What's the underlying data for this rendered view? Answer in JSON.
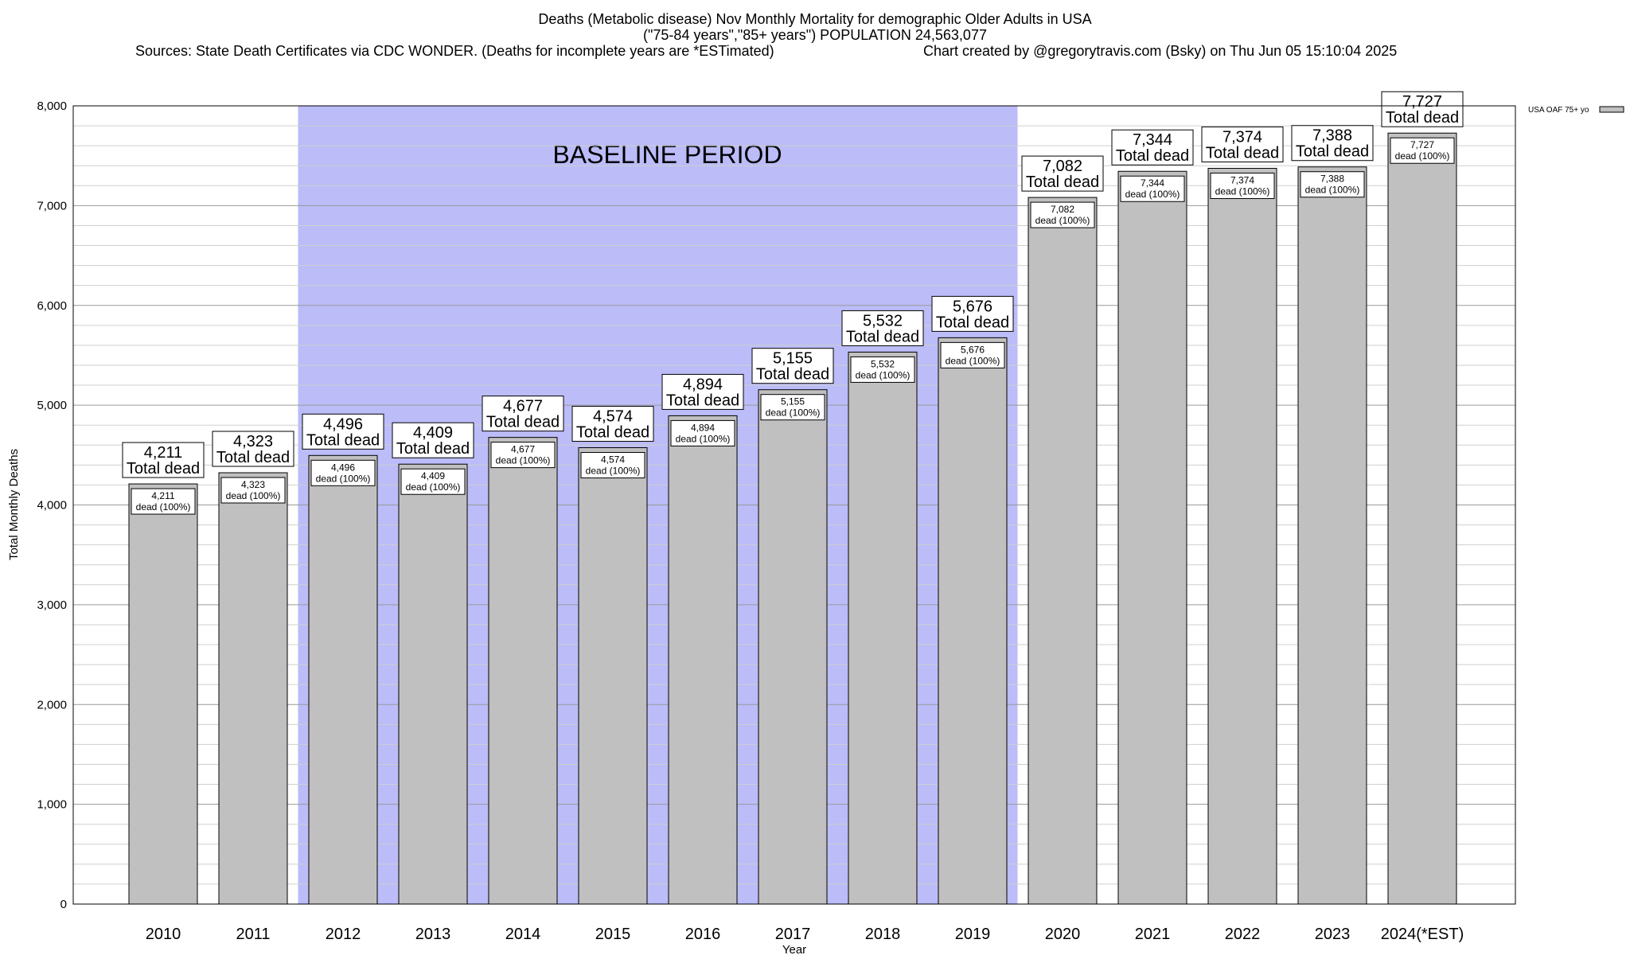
{
  "header": {
    "line1": "Deaths (Metabolic disease) Nov Monthly Mortality for demographic Older Adults in USA",
    "line2": "(\"75-84 years\",\"85+ years\") POPULATION 24,563,077",
    "line3": "Sources: State Death Certificates via CDC WONDER. (Deaths for incomplete years are *ESTimated)",
    "line4": "Chart created by @gregorytravis.com (Bsky) on Thu Jun 05 15:10:04 2025"
  },
  "colors": {
    "bar_fill": "#c0c0c0",
    "baseline_fill": "#bbbcf8",
    "grid": "#aaaaaa"
  },
  "chart_data": {
    "type": "bar",
    "ylabel": "Total Monthly Deaths",
    "xlabel": "Year",
    "ylim": [
      0,
      8000
    ],
    "yticks": [
      0,
      1000,
      2000,
      3000,
      4000,
      5000,
      6000,
      7000,
      8000
    ],
    "ytick_labels": [
      "0",
      "1,000",
      "2,000",
      "3,000",
      "4,000",
      "5,000",
      "6,000",
      "7,000",
      "8,000"
    ],
    "grid": true,
    "legend": {
      "position": "top-right",
      "entry": "USA OAF 75+ yo"
    },
    "baseline_label": "BASELINE PERIOD",
    "baseline_range": [
      "2012",
      "2019"
    ],
    "total_label": "Total dead",
    "inner_label": "dead (100%)",
    "categories": [
      "2010",
      "2011",
      "2012",
      "2013",
      "2014",
      "2015",
      "2016",
      "2017",
      "2018",
      "2019",
      "2020",
      "2021",
      "2022",
      "2023",
      "2024(*EST)"
    ],
    "values": [
      4211,
      4323,
      4496,
      4409,
      4677,
      4574,
      4894,
      5155,
      5532,
      5676,
      7082,
      7344,
      7374,
      7388,
      7727
    ],
    "value_labels": [
      "4,211",
      "4,323",
      "4,496",
      "4,409",
      "4,677",
      "4,574",
      "4,894",
      "5,155",
      "5,532",
      "5,676",
      "7,082",
      "7,344",
      "7,374",
      "7,388",
      "7,727"
    ]
  }
}
